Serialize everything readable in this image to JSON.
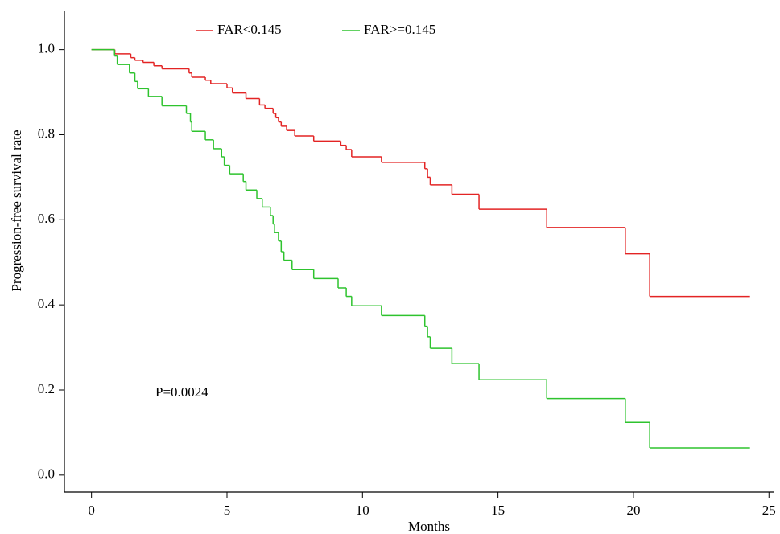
{
  "chart_data": {
    "type": "step",
    "x_label": "Months",
    "y_label": "Progression-free survival rate",
    "annotation": "P=0.0024",
    "xlim": [
      -1,
      25.2
    ],
    "ylim": [
      -0.04,
      1.09
    ],
    "xticks": [
      0,
      5,
      10,
      15,
      20,
      25
    ],
    "yticks": [
      {
        "value": 0,
        "label": "0.0"
      },
      {
        "value": 0.2,
        "label": "0.2"
      },
      {
        "value": 0.4,
        "label": "0.4"
      },
      {
        "value": 0.6,
        "label": "0.6"
      },
      {
        "value": 0.8,
        "label": "0.8"
      },
      {
        "value": 1,
        "label": "1.0"
      }
    ],
    "series": [
      {
        "name": "FAR<0.145",
        "color": "#e32424",
        "x": [
          0,
          0.86,
          1.45,
          1.6,
          1.9,
          2.3,
          2.6,
          3.6,
          3.7,
          4.2,
          4.4,
          5.0,
          5.2,
          5.7,
          6.2,
          6.4,
          6.7,
          6.8,
          6.9,
          7.0,
          7.2,
          7.5,
          8.2,
          9.2,
          9.4,
          9.6,
          10.7,
          12.3,
          12.4,
          12.5,
          13.3,
          14.3,
          16.8,
          19.7,
          20.6,
          24.3
        ],
        "values": [
          1.0,
          0.99,
          0.981,
          0.975,
          0.97,
          0.962,
          0.955,
          0.945,
          0.935,
          0.928,
          0.92,
          0.91,
          0.898,
          0.885,
          0.87,
          0.862,
          0.85,
          0.84,
          0.83,
          0.82,
          0.81,
          0.797,
          0.785,
          0.775,
          0.765,
          0.748,
          0.735,
          0.72,
          0.7,
          0.682,
          0.66,
          0.625,
          0.582,
          0.52,
          0.42,
          0.42
        ]
      },
      {
        "name": "FAR>=0.145",
        "color": "#2ec32e",
        "x": [
          0,
          0.85,
          0.95,
          1.4,
          1.6,
          1.7,
          2.1,
          2.6,
          3.5,
          3.65,
          3.7,
          4.2,
          4.5,
          4.8,
          4.9,
          5.1,
          5.6,
          5.7,
          6.1,
          6.3,
          6.6,
          6.7,
          6.75,
          6.9,
          7.0,
          7.1,
          7.4,
          8.2,
          9.1,
          9.4,
          9.6,
          10.7,
          12.3,
          12.4,
          12.5,
          13.3,
          14.3,
          16.8,
          19.7,
          20.6,
          24.3
        ],
        "values": [
          1.0,
          0.985,
          0.965,
          0.945,
          0.925,
          0.908,
          0.89,
          0.868,
          0.85,
          0.83,
          0.808,
          0.788,
          0.767,
          0.748,
          0.728,
          0.708,
          0.69,
          0.67,
          0.65,
          0.63,
          0.61,
          0.59,
          0.57,
          0.55,
          0.525,
          0.505,
          0.483,
          0.462,
          0.44,
          0.42,
          0.398,
          0.375,
          0.35,
          0.325,
          0.298,
          0.262,
          0.224,
          0.18,
          0.124,
          0.064,
          0.064
        ]
      }
    ]
  }
}
